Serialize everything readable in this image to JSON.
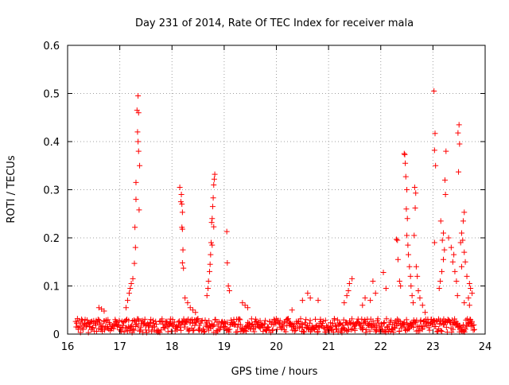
{
  "chart_data": {
    "type": "scatter",
    "title": "Day 231 of 2014, Rate Of TEC Index for receiver mala",
    "xlabel": "GPS time / hours",
    "ylabel": "ROTI / TECUs",
    "xlim": [
      16,
      24
    ],
    "ylim": [
      0,
      0.6
    ],
    "xticks": [
      "16",
      "17",
      "18",
      "19",
      "20",
      "21",
      "22",
      "23",
      "24"
    ],
    "yticks": [
      "0",
      "0.1",
      "0.2",
      "0.3",
      "0.4",
      "0.5",
      "0.6"
    ],
    "grid": true,
    "marker": "plus",
    "color": "#ff0000",
    "series": [
      {
        "name": "ROTI",
        "points": [
          [
            17.35,
            0.495
          ],
          [
            17.33,
            0.465
          ],
          [
            17.36,
            0.46
          ],
          [
            17.34,
            0.42
          ],
          [
            17.35,
            0.4
          ],
          [
            17.36,
            0.38
          ],
          [
            17.38,
            0.35
          ],
          [
            17.31,
            0.315
          ],
          [
            17.31,
            0.28
          ],
          [
            17.37,
            0.258
          ],
          [
            17.29,
            0.222
          ],
          [
            17.3,
            0.18
          ],
          [
            17.28,
            0.147
          ],
          [
            17.25,
            0.115
          ],
          [
            17.22,
            0.105
          ],
          [
            17.2,
            0.095
          ],
          [
            17.18,
            0.085
          ],
          [
            17.15,
            0.07
          ],
          [
            17.12,
            0.055
          ],
          [
            18.15,
            0.305
          ],
          [
            18.18,
            0.29
          ],
          [
            18.17,
            0.275
          ],
          [
            18.19,
            0.27
          ],
          [
            18.2,
            0.253
          ],
          [
            18.19,
            0.222
          ],
          [
            18.2,
            0.218
          ],
          [
            18.21,
            0.175
          ],
          [
            18.2,
            0.148
          ],
          [
            18.22,
            0.137
          ],
          [
            18.25,
            0.075
          ],
          [
            18.3,
            0.065
          ],
          [
            18.35,
            0.055
          ],
          [
            18.4,
            0.05
          ],
          [
            18.45,
            0.045
          ],
          [
            18.82,
            0.332
          ],
          [
            18.81,
            0.322
          ],
          [
            18.8,
            0.31
          ],
          [
            18.79,
            0.283
          ],
          [
            18.78,
            0.265
          ],
          [
            18.77,
            0.24
          ],
          [
            18.76,
            0.232
          ],
          [
            18.8,
            0.223
          ],
          [
            18.75,
            0.19
          ],
          [
            18.77,
            0.185
          ],
          [
            18.74,
            0.165
          ],
          [
            18.73,
            0.145
          ],
          [
            18.72,
            0.13
          ],
          [
            18.7,
            0.11
          ],
          [
            18.69,
            0.095
          ],
          [
            18.67,
            0.08
          ],
          [
            19.05,
            0.213
          ],
          [
            19.06,
            0.148
          ],
          [
            19.08,
            0.1
          ],
          [
            19.1,
            0.09
          ],
          [
            19.35,
            0.065
          ],
          [
            19.4,
            0.06
          ],
          [
            19.45,
            0.055
          ],
          [
            16.6,
            0.055
          ],
          [
            16.65,
            0.052
          ],
          [
            16.7,
            0.048
          ],
          [
            20.5,
            0.07
          ],
          [
            20.6,
            0.085
          ],
          [
            20.65,
            0.075
          ],
          [
            20.8,
            0.07
          ],
          [
            20.3,
            0.05
          ],
          [
            21.45,
            0.115
          ],
          [
            21.4,
            0.105
          ],
          [
            21.38,
            0.09
          ],
          [
            21.35,
            0.08
          ],
          [
            21.3,
            0.065
          ],
          [
            21.7,
            0.075
          ],
          [
            21.8,
            0.07
          ],
          [
            21.85,
            0.11
          ],
          [
            21.9,
            0.085
          ],
          [
            22.05,
            0.128
          ],
          [
            22.1,
            0.095
          ],
          [
            21.65,
            0.06
          ],
          [
            22.3,
            0.197
          ],
          [
            22.32,
            0.195
          ],
          [
            22.33,
            0.155
          ],
          [
            22.36,
            0.11
          ],
          [
            22.38,
            0.1
          ],
          [
            22.45,
            0.375
          ],
          [
            22.46,
            0.373
          ],
          [
            22.47,
            0.355
          ],
          [
            22.48,
            0.327
          ],
          [
            22.5,
            0.3
          ],
          [
            22.49,
            0.26
          ],
          [
            22.51,
            0.24
          ],
          [
            22.5,
            0.205
          ],
          [
            22.52,
            0.185
          ],
          [
            22.53,
            0.165
          ],
          [
            22.55,
            0.14
          ],
          [
            22.57,
            0.12
          ],
          [
            22.58,
            0.1
          ],
          [
            22.6,
            0.08
          ],
          [
            22.62,
            0.065
          ],
          [
            22.65,
            0.305
          ],
          [
            22.67,
            0.293
          ],
          [
            22.66,
            0.262
          ],
          [
            22.64,
            0.205
          ],
          [
            22.68,
            0.14
          ],
          [
            22.7,
            0.12
          ],
          [
            22.72,
            0.09
          ],
          [
            22.75,
            0.075
          ],
          [
            22.8,
            0.06
          ],
          [
            22.85,
            0.045
          ],
          [
            23.02,
            0.505
          ],
          [
            23.04,
            0.417
          ],
          [
            23.03,
            0.382
          ],
          [
            23.05,
            0.35
          ],
          [
            23.03,
            0.19
          ],
          [
            23.15,
            0.235
          ],
          [
            23.2,
            0.21
          ],
          [
            23.18,
            0.195
          ],
          [
            23.22,
            0.175
          ],
          [
            23.2,
            0.155
          ],
          [
            23.17,
            0.13
          ],
          [
            23.14,
            0.11
          ],
          [
            23.12,
            0.095
          ],
          [
            23.25,
            0.38
          ],
          [
            23.23,
            0.32
          ],
          [
            23.24,
            0.29
          ],
          [
            23.3,
            0.2
          ],
          [
            23.35,
            0.18
          ],
          [
            23.4,
            0.165
          ],
          [
            23.38,
            0.15
          ],
          [
            23.42,
            0.13
          ],
          [
            23.45,
            0.11
          ],
          [
            23.47,
            0.08
          ],
          [
            23.5,
            0.435
          ],
          [
            23.48,
            0.418
          ],
          [
            23.51,
            0.395
          ],
          [
            23.49,
            0.337
          ],
          [
            23.6,
            0.253
          ],
          [
            23.58,
            0.235
          ],
          [
            23.55,
            0.21
          ],
          [
            23.57,
            0.195
          ],
          [
            23.53,
            0.19
          ],
          [
            23.6,
            0.17
          ],
          [
            23.62,
            0.15
          ],
          [
            23.55,
            0.14
          ],
          [
            23.65,
            0.12
          ],
          [
            23.7,
            0.105
          ],
          [
            23.72,
            0.095
          ],
          [
            23.75,
            0.085
          ],
          [
            23.68,
            0.075
          ],
          [
            23.6,
            0.065
          ],
          [
            23.7,
            0.06
          ]
        ],
        "baseline": {
          "x_range": [
            16.15,
            23.8
          ],
          "y_range": [
            0.003,
            0.032
          ]
        }
      }
    ]
  }
}
